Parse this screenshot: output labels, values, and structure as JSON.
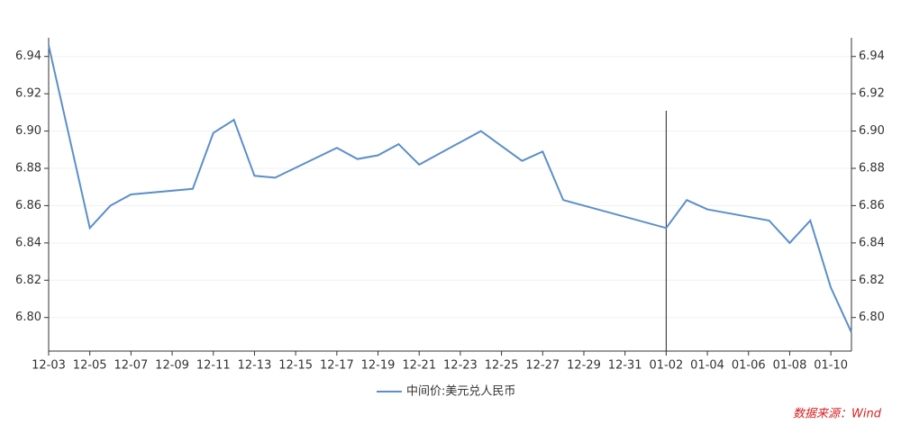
{
  "chart_data": {
    "type": "line",
    "x": [
      "12-03",
      "12-05",
      "12-06",
      "12-07",
      "12-10",
      "12-11",
      "12-12",
      "12-13",
      "12-14",
      "12-17",
      "12-18",
      "12-19",
      "12-20",
      "12-21",
      "12-24",
      "12-25",
      "12-26",
      "12-27",
      "12-28",
      "01-02",
      "01-03",
      "01-04",
      "01-07",
      "01-08",
      "01-09",
      "01-10",
      "01-11"
    ],
    "series": [
      {
        "name": "中间价:美元兑人民币",
        "color": "#5b8fc9",
        "values": [
          6.946,
          6.848,
          6.86,
          6.866,
          6.869,
          6.899,
          6.906,
          6.876,
          6.875,
          6.891,
          6.885,
          6.887,
          6.893,
          6.882,
          6.9,
          6.892,
          6.884,
          6.889,
          6.863,
          6.848,
          6.863,
          6.858,
          6.852,
          6.84,
          6.852,
          6.816,
          6.792
        ]
      }
    ],
    "xlim": [
      "12-03",
      "01-11"
    ],
    "xticks": [
      "12-03",
      "12-05",
      "12-07",
      "12-09",
      "12-11",
      "12-13",
      "12-15",
      "12-17",
      "12-19",
      "12-21",
      "12-23",
      "12-25",
      "12-27",
      "12-29",
      "12-31",
      "01-02",
      "01-04",
      "01-06",
      "01-08",
      "01-10"
    ],
    "ylim": [
      6.782,
      6.95
    ],
    "yticks": [
      {
        "value": 6.8,
        "label": "6.80"
      },
      6.82,
      6.84,
      6.86,
      6.88,
      {
        "value": 6.9,
        "label": "6.90"
      },
      6.92,
      6.94
    ],
    "y2lim": [
      6.782,
      6.95
    ],
    "y2ticks": [
      {
        "value": 6.8,
        "label": "6.80"
      },
      6.82,
      6.84,
      6.86,
      6.88,
      {
        "value": 6.9,
        "label": "6.90"
      },
      6.92,
      6.94
    ],
    "grid": true,
    "marker_x": "01-02",
    "legend": "bottom",
    "source": "数据来源：Wind"
  }
}
